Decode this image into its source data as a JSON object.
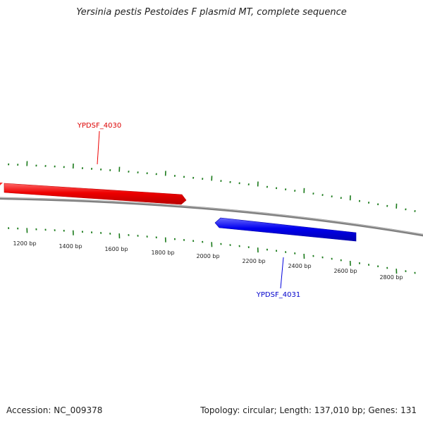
{
  "title": "Yersinia pestis Pestoides F plasmid MT, complete sequence",
  "footer": {
    "accession": "Accession: NC_009378",
    "topology": "Topology: circular; Length: 137,010 bp; Genes: 131"
  },
  "colors": {
    "forward_gene": "#ee0000",
    "reverse_gene": "#0000ee",
    "backbone": "#808080",
    "ticks": "#1a7a1a"
  },
  "genes": [
    {
      "id": "YPDSF_4030",
      "label": "YPDSF_4030",
      "strand": "forward",
      "color": "#e60000"
    },
    {
      "id": "YPDSF_4031",
      "label": "YPDSF_4031",
      "strand": "reverse",
      "color": "#0000dd"
    }
  ],
  "scale_labels": [
    "1200 bp",
    "1400 bp",
    "1600 bp",
    "1800 bp",
    "2000 bp",
    "2200 bp",
    "2400 bp",
    "2600 bp",
    "2800 bp"
  ]
}
